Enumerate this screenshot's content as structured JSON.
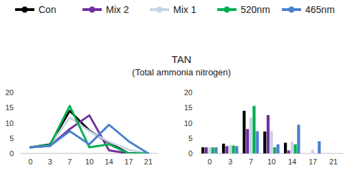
{
  "chart_data": [
    {
      "type": "line",
      "title": "TAN",
      "subtitle": "(Total ammonia nitrogen)",
      "categories": [
        "0",
        "3",
        "7",
        "10",
        "14",
        "17",
        "21"
      ],
      "series": [
        {
          "name": "Con",
          "color": "#000000",
          "values": [
            2,
            3,
            14,
            7.5,
            3.5,
            0,
            0
          ]
        },
        {
          "name": "Mix 2",
          "color": "#7030a0",
          "values": [
            2,
            2.5,
            8,
            12.5,
            1,
            0,
            0
          ]
        },
        {
          "name": "Mix 1",
          "color": "#c9d3e6",
          "values": [
            2,
            2.7,
            11.8,
            7.3,
            3.8,
            1.2,
            0
          ]
        },
        {
          "name": "520nm",
          "color": "#00b050",
          "values": [
            2,
            2.8,
            15.6,
            2,
            3,
            0,
            0
          ]
        },
        {
          "name": "465nm",
          "color": "#4a7fd0",
          "values": [
            2,
            2.5,
            7.3,
            3,
            9.4,
            4,
            0
          ]
        }
      ],
      "ylim": [
        0,
        20
      ],
      "yticks": [
        0,
        5,
        10,
        15,
        20
      ],
      "grid": false,
      "legend": "top"
    },
    {
      "type": "bar",
      "categories": [
        "0",
        "3",
        "7",
        "10",
        "14",
        "17",
        "21"
      ],
      "series": [
        {
          "color": "#000000",
          "values": [
            2,
            3.2,
            14,
            7.2,
            3.5,
            0,
            0
          ]
        },
        {
          "color": "#7030a0",
          "values": [
            2,
            2.4,
            8,
            12.6,
            1,
            0,
            0
          ]
        },
        {
          "color": "#c9d3e6",
          "values": [
            2,
            2.8,
            11.8,
            7.3,
            3.8,
            1.2,
            0
          ]
        },
        {
          "color": "#00b050",
          "values": [
            2,
            2.6,
            15.6,
            2,
            3,
            0,
            0
          ]
        },
        {
          "color": "#4a7fd0",
          "values": [
            2,
            2.4,
            7.3,
            3,
            9.4,
            4,
            0
          ]
        }
      ],
      "ylim": [
        0,
        20
      ],
      "yticks": [
        0,
        5,
        10,
        15,
        20
      ],
      "grid": false
    }
  ]
}
